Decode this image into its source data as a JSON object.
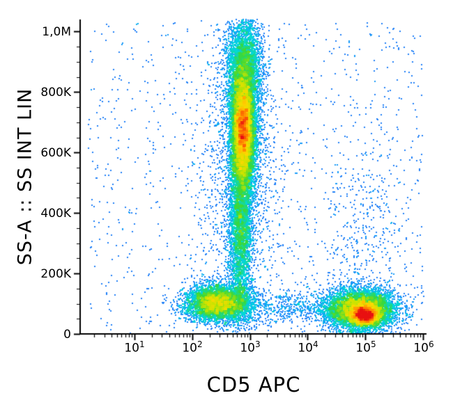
{
  "figure": {
    "background": "#ffffff"
  },
  "chart_data": {
    "type": "scatter",
    "subtype": "flow-cytometry-density-plot",
    "title": "",
    "xlabel": "CD5 APC",
    "ylabel": "SS-A :: SS INT LIN",
    "x_scale": "log10",
    "y_scale": "linear",
    "x_log_range": [
      0.06,
      6.06
    ],
    "y_range": [
      0,
      1040000
    ],
    "x_ticks": [
      {
        "base": "10",
        "exp": "1",
        "log": 1
      },
      {
        "base": "10",
        "exp": "2",
        "log": 2
      },
      {
        "base": "10",
        "exp": "3",
        "log": 3
      },
      {
        "base": "10",
        "exp": "4",
        "log": 4
      },
      {
        "base": "10",
        "exp": "5",
        "log": 5
      },
      {
        "base": "10",
        "exp": "6",
        "log": 6
      }
    ],
    "y_ticks": [
      {
        "value": 0,
        "label": "0"
      },
      {
        "value": 200000,
        "label": "200K"
      },
      {
        "value": 400000,
        "label": "400K"
      },
      {
        "value": 600000,
        "label": "600K"
      },
      {
        "value": 800000,
        "label": "800K"
      },
      {
        "value": 1000000,
        "label": "1,0M"
      }
    ],
    "y_minor_tick_step": 50000,
    "axis_color": "#000000",
    "dot_size_px": 2,
    "density_colormap": [
      "#2238c8",
      "#1e8cff",
      "#00d8e0",
      "#38d838",
      "#c8e400",
      "#ffd800",
      "#ff7800",
      "#e81010"
    ],
    "density_gamma": 0.5,
    "seed": 42,
    "populations": [
      {
        "name": "granulocytes-column-core",
        "count": 9000,
        "x": {
          "dist": "normal",
          "mean": 2.88,
          "sd": 0.11
        },
        "y": {
          "dist": "normal",
          "mean": 660000,
          "sd": 110000
        }
      },
      {
        "name": "granulocytes-column-hot",
        "count": 2500,
        "x": {
          "dist": "normal",
          "mean": 2.88,
          "sd": 0.07
        },
        "y": {
          "dist": "normal",
          "mean": 690000,
          "sd": 60000
        }
      },
      {
        "name": "granulocytes-column-upper",
        "count": 3500,
        "x": {
          "dist": "normal",
          "mean": 2.9,
          "sd": 0.16
        },
        "y": {
          "dist": "normal",
          "mean": 880000,
          "sd": 90000
        }
      },
      {
        "name": "granulocytes-column-tail",
        "count": 3000,
        "x": {
          "dist": "normal",
          "mean": 2.84,
          "sd": 0.1
        },
        "y": {
          "dist": "normal",
          "mean": 330000,
          "sd": 130000
        }
      },
      {
        "name": "column-halo",
        "count": 1500,
        "x": {
          "dist": "normal",
          "mean": 2.85,
          "sd": 0.35
        },
        "y": {
          "dist": "normal",
          "mean": 520000,
          "sd": 250000
        }
      },
      {
        "name": "cd5neg-lymphocytes",
        "count": 5000,
        "x": {
          "dist": "normal",
          "mean": 2.45,
          "sd": 0.28
        },
        "y": {
          "dist": "normal",
          "mean": 103000,
          "sd": 30000
        }
      },
      {
        "name": "cd5pos-lymphocytes",
        "count": 7000,
        "x": {
          "dist": "normal",
          "mean": 4.92,
          "sd": 0.3
        },
        "y": {
          "dist": "normal",
          "mean": 80000,
          "sd": 33000
        }
      },
      {
        "name": "cd5pos-hotspot",
        "count": 3000,
        "x": {
          "dist": "normal",
          "mean": 5.0,
          "sd": 0.12
        },
        "y": {
          "dist": "normal",
          "mean": 62000,
          "sd": 15000
        }
      },
      {
        "name": "bottom-band",
        "count": 800,
        "x": {
          "dist": "uniform",
          "min": 2.2,
          "max": 4.6
        },
        "y": {
          "dist": "normal",
          "mean": 90000,
          "sd": 30000
        }
      },
      {
        "name": "cd5pos-ssc-spread",
        "count": 350,
        "x": {
          "dist": "normal",
          "mean": 4.95,
          "sd": 0.35
        },
        "y": {
          "dist": "normal",
          "mean": 320000,
          "sd": 180000
        }
      },
      {
        "name": "background-scatter",
        "count": 1100,
        "x": {
          "dist": "uniform",
          "min": 0.2,
          "max": 6.0
        },
        "y": {
          "dist": "uniform",
          "min": 2000,
          "max": 1030000
        }
      }
    ]
  }
}
